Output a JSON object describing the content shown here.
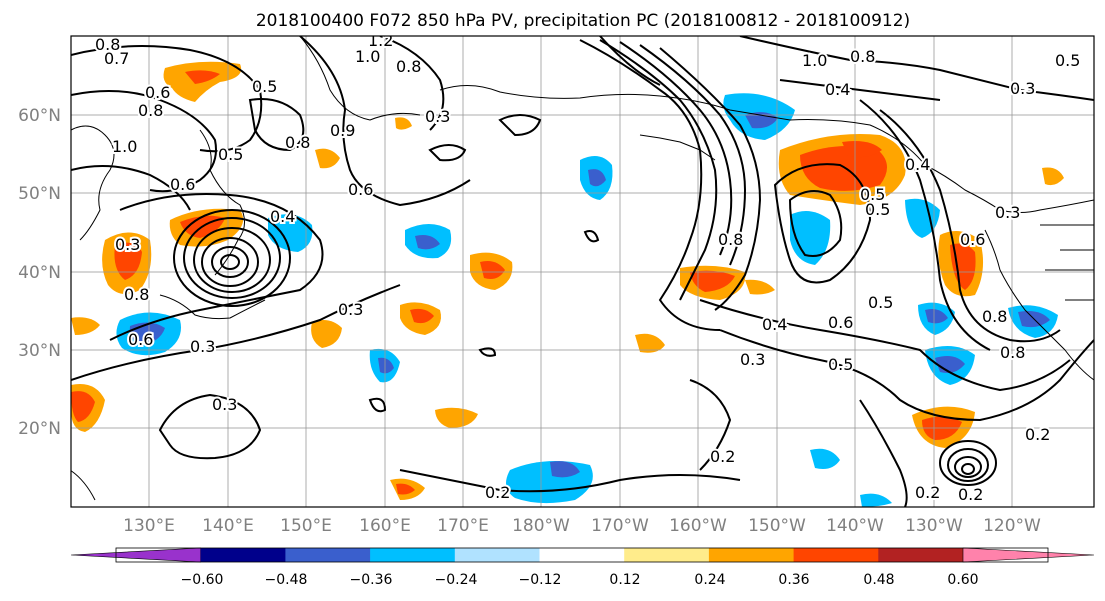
{
  "title": "2018100400 F072 850 hPa PV, precipitation PC (2018100812 - 2018100912)",
  "lon_labels": [
    "130°E",
    "140°E",
    "150°E",
    "160°E",
    "170°E",
    "180°W",
    "170°W",
    "160°W",
    "150°W",
    "140°W",
    "130°W",
    "120°W"
  ],
  "lat_labels": [
    "60°N",
    "50°N",
    "40°N",
    "30°N",
    "20°N"
  ],
  "colorbar": {
    "colors": [
      "#9932cc",
      "#00008b",
      "#3a5fcd",
      "#00bfff",
      "#b0e2ff",
      "#ffffff",
      "#ffec8b",
      "#ffa500",
      "#ff4500",
      "#b22222",
      "#ff82ab"
    ],
    "tick_labels": [
      "−0.60",
      "−0.48",
      "−0.36",
      "−0.24",
      "−0.12",
      "0.12",
      "0.24",
      "0.36",
      "0.48",
      "0.60"
    ]
  },
  "contour_labels": [
    "0.8",
    "0.7",
    "1.2",
    "1.0",
    "0.8",
    "0.6",
    "0.8",
    "1.0",
    "0.5",
    "0.3",
    "0.8",
    "0.9",
    "0.5",
    "0.6",
    "0.6",
    "0.4",
    "0.3",
    "0.3",
    "0.3",
    "0.3",
    "0.8",
    "0.6",
    "0.8",
    "0.5",
    "0.6",
    "0.5",
    "0.3",
    "0.5",
    "0.4",
    "0.2",
    "0.2",
    "0.2",
    "0.3",
    "0.6",
    "0.8",
    "0.8",
    "0.2",
    "0.2",
    "0.4",
    "0.5",
    "1.0",
    "0.8",
    "0.4",
    "0.3",
    "0.5"
  ]
}
